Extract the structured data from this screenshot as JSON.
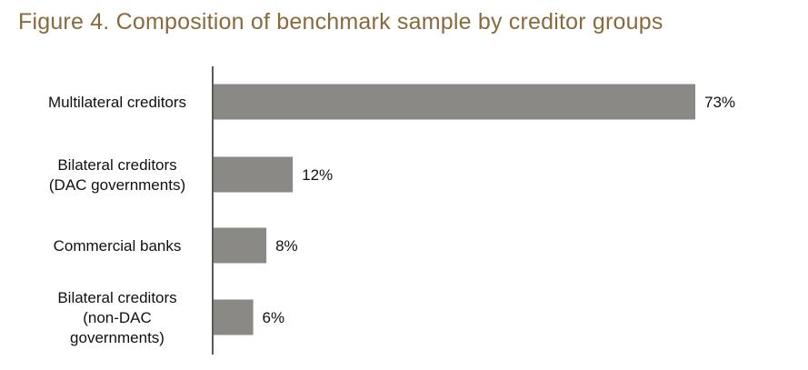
{
  "title": "Figure 4. Composition of benchmark sample by creditor groups",
  "colors": {
    "title": "#8a6a3c",
    "bar": "#8b8986",
    "axis": "#222222",
    "text": "#111111"
  },
  "chart_data": {
    "type": "bar",
    "orientation": "horizontal",
    "title": "Figure 4. Composition of benchmark sample by creditor groups",
    "categories": [
      [
        "Multilateral creditors"
      ],
      [
        "Bilateral creditors",
        "(DAC governments)"
      ],
      [
        "Commercial banks"
      ],
      [
        "Bilateral creditors",
        "(non-DAC",
        "governments)"
      ]
    ],
    "values": [
      73,
      12,
      8,
      6
    ],
    "value_labels": [
      "73%",
      "12%",
      "8%",
      "6%"
    ],
    "unit": "%",
    "xlim": [
      0,
      73
    ],
    "grid": false,
    "legend": "none"
  }
}
